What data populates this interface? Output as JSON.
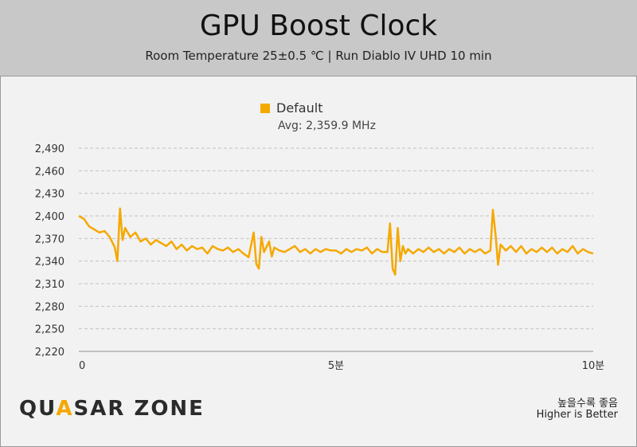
{
  "header": {
    "title": "GPU Boost Clock",
    "subtitle": "Room Temperature 25±0.5 ℃  |  Run Diablo IV UHD 10 min"
  },
  "legend": {
    "label": "Default",
    "avg": "Avg: 2,359.9 MHz",
    "color": "#f5a800"
  },
  "footer": {
    "logo_pre": "QU",
    "logo_accent": "A",
    "logo_post": "SAR ZONE",
    "note_ko": "높을수록 좋음",
    "note_en": "Higher is Better"
  },
  "chart_data": {
    "type": "line",
    "title": "GPU Boost Clock",
    "xlabel": "",
    "ylabel": "",
    "xlim": [
      0,
      10
    ],
    "ylim": [
      2220,
      2490
    ],
    "yticks": [
      2220,
      2250,
      2280,
      2310,
      2340,
      2370,
      2400,
      2430,
      2460,
      2490
    ],
    "ytick_labels": [
      "2,220",
      "2,250",
      "2,280",
      "2,310",
      "2,340",
      "2,370",
      "2,400",
      "2,430",
      "2,460",
      "2,490"
    ],
    "xticks": [
      0,
      5,
      10
    ],
    "xtick_labels": [
      "0",
      "5분",
      "10분"
    ],
    "grid": true,
    "legend_position": "top-center",
    "series": [
      {
        "name": "Default",
        "color": "#f5a800",
        "x": [
          0,
          0.1,
          0.2,
          0.3,
          0.4,
          0.5,
          0.6,
          0.7,
          0.75,
          0.8,
          0.85,
          0.9,
          1.0,
          1.1,
          1.2,
          1.3,
          1.4,
          1.5,
          1.6,
          1.7,
          1.8,
          1.9,
          2.0,
          2.1,
          2.2,
          2.3,
          2.4,
          2.5,
          2.6,
          2.7,
          2.8,
          2.9,
          3.0,
          3.1,
          3.2,
          3.3,
          3.4,
          3.45,
          3.5,
          3.55,
          3.6,
          3.7,
          3.75,
          3.8,
          3.9,
          4.0,
          4.1,
          4.2,
          4.3,
          4.4,
          4.5,
          4.6,
          4.7,
          4.8,
          4.9,
          5.0,
          5.1,
          5.2,
          5.3,
          5.4,
          5.5,
          5.6,
          5.7,
          5.8,
          5.9,
          6.0,
          6.05,
          6.1,
          6.15,
          6.2,
          6.25,
          6.3,
          6.35,
          6.4,
          6.5,
          6.6,
          6.7,
          6.8,
          6.9,
          7.0,
          7.1,
          7.2,
          7.3,
          7.4,
          7.5,
          7.6,
          7.7,
          7.8,
          7.9,
          8.0,
          8.05,
          8.1,
          8.15,
          8.2,
          8.3,
          8.4,
          8.5,
          8.6,
          8.7,
          8.8,
          8.9,
          9.0,
          9.1,
          9.2,
          9.3,
          9.4,
          9.5,
          9.6,
          9.7,
          9.8,
          9.9,
          10.0
        ],
        "y": [
          2400,
          2396,
          2386,
          2382,
          2378,
          2380,
          2372,
          2358,
          2340,
          2410,
          2368,
          2384,
          2372,
          2378,
          2366,
          2370,
          2362,
          2368,
          2364,
          2360,
          2366,
          2356,
          2362,
          2354,
          2360,
          2356,
          2358,
          2350,
          2360,
          2356,
          2354,
          2358,
          2352,
          2356,
          2350,
          2345,
          2378,
          2336,
          2330,
          2372,
          2352,
          2366,
          2346,
          2358,
          2354,
          2352,
          2356,
          2360,
          2352,
          2356,
          2350,
          2356,
          2352,
          2356,
          2354,
          2354,
          2350,
          2356,
          2352,
          2356,
          2354,
          2358,
          2350,
          2356,
          2352,
          2352,
          2390,
          2330,
          2322,
          2384,
          2340,
          2360,
          2350,
          2356,
          2350,
          2356,
          2352,
          2358,
          2352,
          2356,
          2350,
          2356,
          2352,
          2358,
          2350,
          2356,
          2352,
          2356,
          2350,
          2354,
          2408,
          2376,
          2335,
          2362,
          2354,
          2360,
          2352,
          2360,
          2350,
          2356,
          2352,
          2358,
          2352,
          2358,
          2350,
          2356,
          2352,
          2360,
          2350,
          2356,
          2352,
          2350
        ]
      }
    ]
  }
}
